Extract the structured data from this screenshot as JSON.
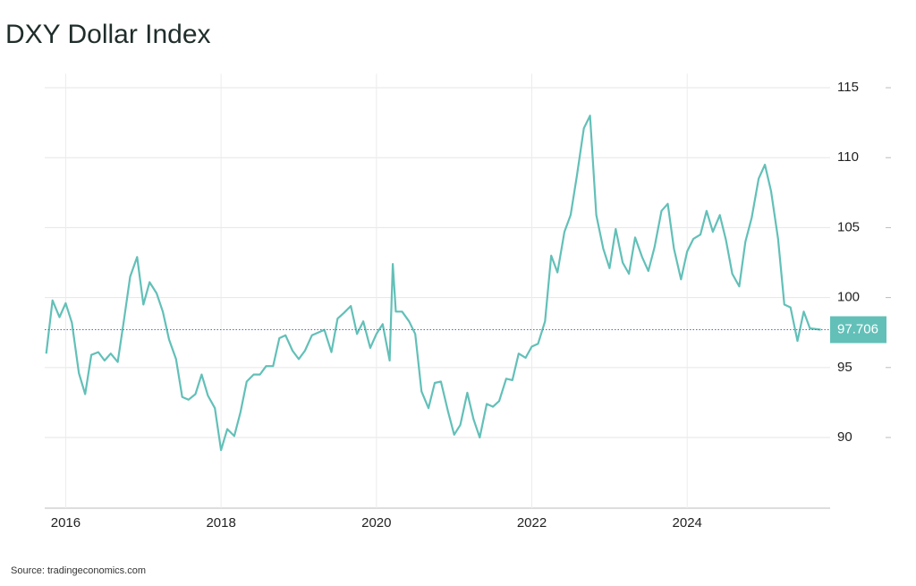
{
  "chart_data": {
    "type": "line",
    "title": "DXY Dollar Index",
    "source": "Source: tradingeconomics.com",
    "color": "#62c0b8",
    "grid": true,
    "ylim": [
      85,
      116
    ],
    "yticks": [
      90,
      95,
      100,
      105,
      110,
      115
    ],
    "xlim": [
      2015.73,
      2025.84
    ],
    "xticks": [
      2016,
      2018,
      2020,
      2022,
      2024
    ],
    "x": [
      2015.75,
      2015.83,
      2015.92,
      2016.0,
      2016.08,
      2016.17,
      2016.25,
      2016.33,
      2016.42,
      2016.5,
      2016.58,
      2016.67,
      2016.75,
      2016.83,
      2016.92,
      2017.0,
      2017.08,
      2017.17,
      2017.25,
      2017.33,
      2017.42,
      2017.5,
      2017.58,
      2017.67,
      2017.75,
      2017.83,
      2017.92,
      2018.0,
      2018.08,
      2018.17,
      2018.25,
      2018.33,
      2018.42,
      2018.5,
      2018.58,
      2018.67,
      2018.75,
      2018.83,
      2018.92,
      2019.0,
      2019.08,
      2019.17,
      2019.25,
      2019.33,
      2019.42,
      2019.5,
      2019.58,
      2019.67,
      2019.75,
      2019.83,
      2019.92,
      2020.0,
      2020.08,
      2020.17,
      2020.21,
      2020.25,
      2020.33,
      2020.42,
      2020.5,
      2020.58,
      2020.67,
      2020.75,
      2020.83,
      2020.92,
      2021.0,
      2021.08,
      2021.17,
      2021.25,
      2021.33,
      2021.42,
      2021.5,
      2021.58,
      2021.67,
      2021.75,
      2021.83,
      2021.92,
      2022.0,
      2022.08,
      2022.17,
      2022.25,
      2022.33,
      2022.42,
      2022.5,
      2022.58,
      2022.67,
      2022.75,
      2022.83,
      2022.92,
      2023.0,
      2023.08,
      2023.17,
      2023.25,
      2023.33,
      2023.42,
      2023.5,
      2023.58,
      2023.67,
      2023.75,
      2023.83,
      2023.92,
      2024.0,
      2024.08,
      2024.17,
      2024.25,
      2024.33,
      2024.42,
      2024.5,
      2024.58,
      2024.67,
      2024.75,
      2024.83,
      2024.92,
      2025.0,
      2025.08,
      2025.17,
      2025.25,
      2025.33,
      2025.42,
      2025.5,
      2025.58,
      2025.72
    ],
    "values": [
      96.0,
      99.8,
      98.6,
      99.6,
      98.2,
      94.6,
      93.1,
      95.9,
      96.1,
      95.5,
      96.0,
      95.4,
      98.4,
      101.5,
      102.9,
      99.5,
      101.1,
      100.3,
      99.0,
      97.0,
      95.6,
      92.9,
      92.7,
      93.1,
      94.5,
      93.0,
      92.1,
      89.1,
      90.6,
      90.1,
      91.8,
      94.0,
      94.5,
      94.5,
      95.1,
      95.1,
      97.1,
      97.3,
      96.2,
      95.6,
      96.2,
      97.3,
      97.5,
      97.7,
      96.1,
      98.5,
      98.9,
      99.4,
      97.4,
      98.3,
      96.4,
      97.4,
      98.1,
      95.5,
      102.4,
      99.0,
      99.0,
      98.3,
      97.4,
      93.3,
      92.1,
      93.9,
      94.0,
      91.9,
      90.2,
      90.9,
      93.2,
      91.3,
      90.0,
      92.4,
      92.2,
      92.6,
      94.2,
      94.1,
      96.0,
      95.7,
      96.5,
      96.7,
      98.3,
      103.0,
      101.8,
      104.7,
      105.9,
      108.7,
      112.1,
      113.0,
      105.9,
      103.5,
      102.1,
      104.9,
      102.5,
      101.7,
      104.3,
      102.9,
      101.9,
      103.6,
      106.2,
      106.7,
      103.5,
      101.3,
      103.3,
      104.2,
      104.5,
      106.2,
      104.7,
      105.9,
      104.1,
      101.7,
      100.8,
      104.0,
      105.7,
      108.5,
      109.5,
      107.6,
      104.2,
      99.5,
      99.3,
      96.9,
      99.0,
      97.8,
      97.706
    ]
  }
}
